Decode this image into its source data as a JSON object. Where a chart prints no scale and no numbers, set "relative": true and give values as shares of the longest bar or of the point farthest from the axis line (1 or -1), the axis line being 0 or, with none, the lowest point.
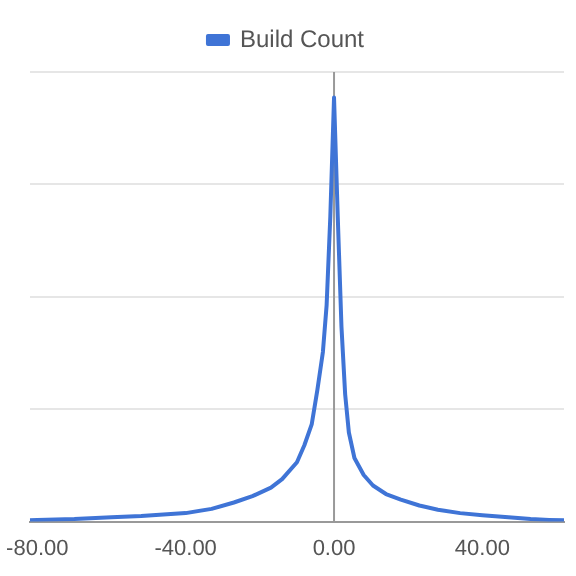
{
  "chart_data": {
    "type": "line",
    "relative": true,
    "legend": "top",
    "grid": "y",
    "marker": "none",
    "line_style": "solid",
    "x": [
      -82,
      -80,
      -70,
      -60,
      -52,
      -40,
      -33,
      -27,
      -22,
      -17,
      -14,
      -10,
      -8,
      -6,
      -4.5,
      -3,
      -2,
      -1,
      0,
      1,
      2,
      3,
      4,
      5.5,
      8,
      10.5,
      14,
      18,
      23,
      28,
      34,
      40,
      47,
      53,
      58,
      62
    ],
    "xlim": [
      -82,
      62
    ],
    "xticks": [
      {
        "value": -80,
        "label": "-80.00"
      },
      {
        "value": -40,
        "label": "-40.00"
      },
      {
        "value": 0,
        "label": "0.00"
      },
      {
        "value": 40,
        "label": "40.00"
      }
    ],
    "series": [
      {
        "name": "Build Count",
        "color": "#3f74d6",
        "values": [
          0.003,
          0.004,
          0.006,
          0.01,
          0.013,
          0.02,
          0.03,
          0.045,
          0.06,
          0.08,
          0.1,
          0.14,
          0.18,
          0.23,
          0.31,
          0.4,
          0.51,
          0.72,
          1,
          0.72,
          0.46,
          0.3,
          0.21,
          0.15,
          0.11,
          0.085,
          0.065,
          0.052,
          0.038,
          0.028,
          0.02,
          0.015,
          0.01,
          0.006,
          0.004,
          0.003
        ]
      }
    ],
    "ref_lines": [
      {
        "axis": "x",
        "value": 0,
        "color": "#999999"
      }
    ]
  }
}
